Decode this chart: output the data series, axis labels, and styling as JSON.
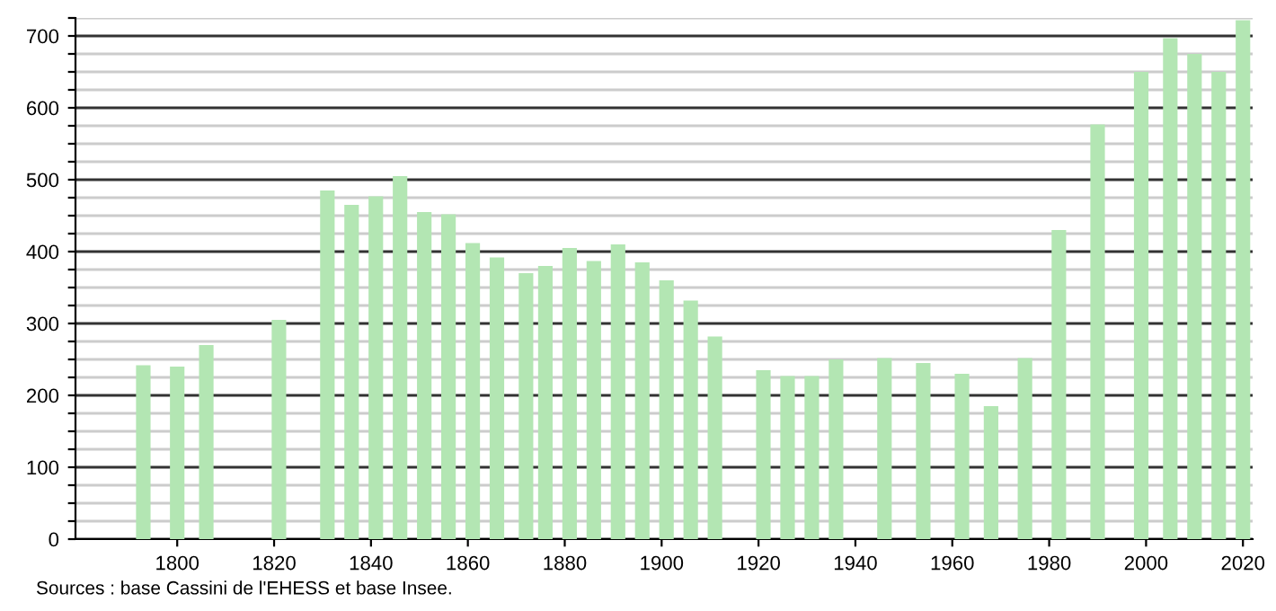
{
  "chart_data": {
    "type": "bar",
    "x": [
      1793,
      1800,
      1806,
      1821,
      1831,
      1836,
      1841,
      1846,
      1851,
      1856,
      1861,
      1866,
      1872,
      1876,
      1881,
      1886,
      1891,
      1896,
      1901,
      1906,
      1911,
      1921,
      1926,
      1931,
      1936,
      1946,
      1954,
      1962,
      1968,
      1975,
      1982,
      1990,
      1999,
      2005,
      2010,
      2015,
      2020
    ],
    "values": [
      242,
      240,
      270,
      305,
      485,
      465,
      477,
      505,
      455,
      452,
      412,
      392,
      370,
      380,
      405,
      387,
      410,
      385,
      360,
      332,
      282,
      235,
      227,
      227,
      250,
      252,
      245,
      230,
      185,
      252,
      430,
      577,
      650,
      697,
      675,
      650,
      722
    ],
    "color": "#b3e6b3",
    "xlim": [
      1779,
      2022
    ],
    "xticks": [
      1800,
      1820,
      1840,
      1860,
      1880,
      1900,
      1920,
      1940,
      1960,
      1980,
      2000,
      2020
    ],
    "ylim": [
      0,
      725
    ],
    "yticks": [
      0,
      {
        "value": 25,
        "label": null
      },
      {
        "value": 50,
        "label": null
      },
      {
        "value": 75,
        "label": null
      },
      100,
      {
        "value": 125,
        "label": null
      },
      {
        "value": 150,
        "label": null
      },
      {
        "value": 175,
        "label": null
      },
      200,
      {
        "value": 225,
        "label": null
      },
      {
        "value": 250,
        "label": null
      },
      {
        "value": 275,
        "label": null
      },
      300,
      {
        "value": 325,
        "label": null
      },
      {
        "value": 350,
        "label": null
      },
      {
        "value": 375,
        "label": null
      },
      400,
      {
        "value": 425,
        "label": null
      },
      {
        "value": 450,
        "label": null
      },
      {
        "value": 475,
        "label": null
      },
      500,
      {
        "value": 525,
        "label": null
      },
      {
        "value": 550,
        "label": null
      },
      {
        "value": 575,
        "label": null
      },
      600,
      {
        "value": 625,
        "label": null
      },
      {
        "value": 650,
        "label": null
      },
      {
        "value": 675,
        "label": null
      },
      700,
      {
        "value": 725,
        "label": null
      }
    ],
    "grid": "y",
    "annotations": [
      "Sources : base Cassini de l'EHESS et base Insee."
    ]
  }
}
